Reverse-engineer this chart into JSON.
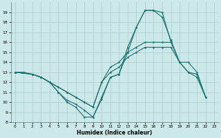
{
  "xlabel": "Humidex (Indice chaleur)",
  "xlim": [
    -0.5,
    23.5
  ],
  "ylim": [
    8,
    20
  ],
  "yticks": [
    8,
    9,
    10,
    11,
    12,
    13,
    14,
    15,
    16,
    17,
    18,
    19
  ],
  "xticks": [
    0,
    1,
    2,
    3,
    4,
    5,
    6,
    7,
    8,
    9,
    10,
    11,
    12,
    13,
    14,
    15,
    16,
    17,
    18,
    19,
    20,
    21,
    22,
    23
  ],
  "bg_color": "#cce8e8",
  "grid_color": "#aacccc",
  "line_color": "#1a7070",
  "curves": [
    {
      "x": [
        0,
        1,
        2,
        3,
        4,
        5,
        6,
        7,
        8,
        9,
        10,
        11,
        12,
        13,
        14,
        15,
        16,
        17,
        18,
        19,
        20,
        21,
        22
      ],
      "y": [
        13,
        13,
        12.8,
        12.5,
        12,
        11,
        10,
        9.5,
        8.5,
        8.5,
        10.5,
        12.5,
        12.8,
        15,
        17.5,
        19.2,
        19.2,
        19.0,
        16,
        null,
        null,
        null,
        null
      ]
    },
    {
      "x": [
        0,
        2,
        3,
        4,
        5,
        6,
        7,
        8,
        9,
        10,
        11,
        12,
        13,
        14,
        15,
        16,
        17,
        18,
        19,
        20,
        21,
        22
      ],
      "y": [
        13,
        12.8,
        12.5,
        12,
        11,
        10.2,
        9.8,
        9.2,
        8.5,
        10.3,
        12.5,
        12.8,
        15.5,
        17.5,
        19.2,
        19.2,
        18.5,
        16.2,
        14,
        13,
        12.8,
        10.5
      ]
    },
    {
      "x": [
        0,
        2,
        3,
        4,
        5,
        6,
        7,
        8,
        9,
        10,
        11,
        12,
        13,
        14,
        15,
        16,
        17,
        18,
        19,
        20,
        21,
        22
      ],
      "y": [
        13,
        12.8,
        12.5,
        12,
        11.5,
        11,
        10.5,
        10,
        9.5,
        12,
        13.5,
        14,
        15,
        15.5,
        16,
        16,
        16,
        16,
        14,
        14,
        13,
        10.5
      ]
    },
    {
      "x": [
        0,
        2,
        3,
        4,
        5,
        6,
        7,
        8,
        9,
        10,
        11,
        12,
        13,
        14,
        15,
        16,
        17,
        18,
        19,
        20,
        21,
        22
      ],
      "y": [
        13,
        12.8,
        12.5,
        12,
        11.5,
        11,
        10.5,
        10,
        9.5,
        12,
        13,
        13.5,
        14.5,
        15,
        15.5,
        15.5,
        15.5,
        15.5,
        14,
        13,
        12.5,
        10.5
      ]
    }
  ]
}
